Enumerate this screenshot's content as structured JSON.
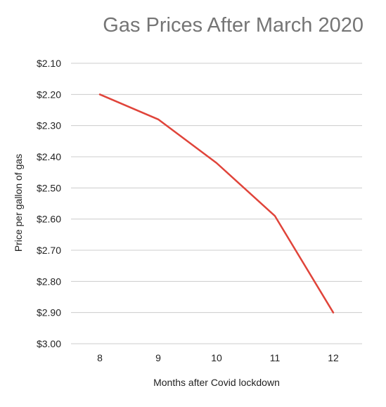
{
  "chart_data": {
    "type": "line",
    "title": "Gas Prices After March 2020",
    "xlabel": "Months after Covid lockdown",
    "ylabel": "Price per gallon of gas",
    "x": [
      8,
      9,
      10,
      11,
      12
    ],
    "series": [
      {
        "values": [
          2.2,
          2.28,
          2.42,
          2.59,
          2.9
        ],
        "color": "#e0443a"
      }
    ],
    "yticks": [
      2.1,
      2.2,
      2.3,
      2.4,
      2.5,
      2.6,
      2.7,
      2.8,
      2.9,
      3.0
    ],
    "ytick_labels": [
      "$2.10",
      "$2.20",
      "$2.30",
      "$2.40",
      "$2.50",
      "$2.60",
      "$2.70",
      "$2.80",
      "$2.90",
      "$3.00"
    ],
    "xtick_labels": [
      "8",
      "9",
      "10",
      "11",
      "12"
    ],
    "ylim": [
      2.1,
      3.0
    ],
    "y_inverted": true,
    "grid": true,
    "gridline_color": "#cccccc"
  }
}
